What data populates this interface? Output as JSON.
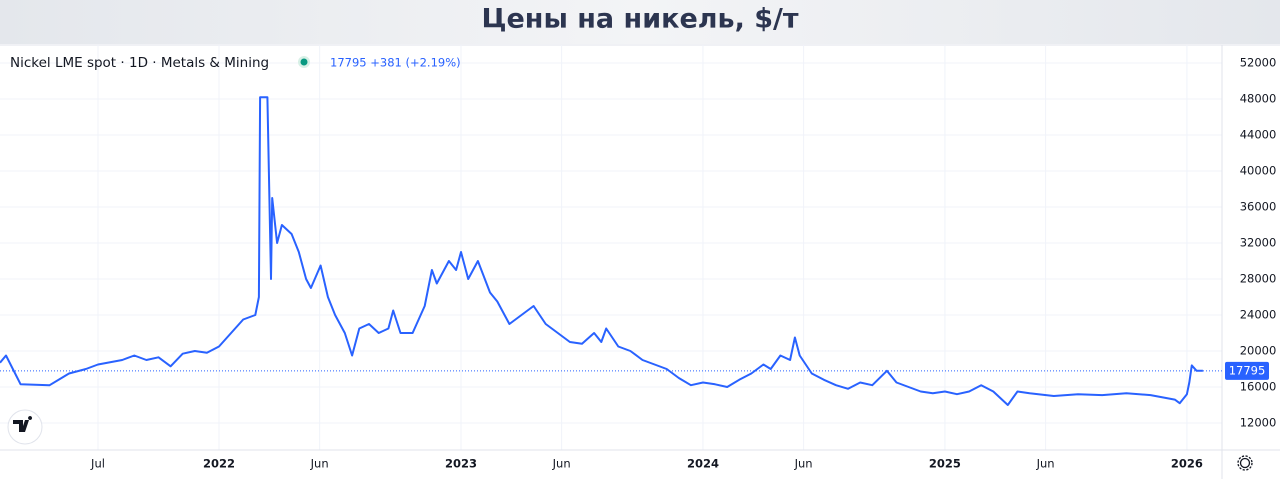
{
  "title": "Цены на никель, $/т",
  "chart_data": {
    "type": "line",
    "symbol": "Nickel LME spot · 1D · Metals & Mining",
    "quote": "17795 +381 (+2.19%)",
    "last_price": 17795,
    "ylim": [
      9000,
      54000
    ],
    "yticks": [
      12000,
      16000,
      20000,
      24000,
      28000,
      32000,
      36000,
      40000,
      44000,
      48000,
      52000
    ],
    "xlim": [
      2021.095,
      2026.145
    ],
    "xticks": [
      {
        "value": 2021.5,
        "label": "Jul"
      },
      {
        "value": 2022,
        "label": "2022"
      },
      {
        "value": 2022.416,
        "label": "Jun"
      },
      {
        "value": 2023,
        "label": "2023"
      },
      {
        "value": 2023.416,
        "label": "Jun"
      },
      {
        "value": 2024,
        "label": "2024"
      },
      {
        "value": 2024.416,
        "label": "Jun"
      },
      {
        "value": 2025,
        "label": "2025"
      },
      {
        "value": 2025.416,
        "label": "Jun"
      },
      {
        "value": 2026,
        "label": "2026"
      }
    ],
    "grid": true,
    "series": [
      {
        "color": "#2962ff",
        "x": [
          2021.095,
          2021.12,
          2021.18,
          2021.3,
          2021.38,
          2021.45,
          2021.5,
          2021.6,
          2021.65,
          2021.7,
          2021.75,
          2021.8,
          2021.85,
          2021.9,
          2021.95,
          2022.0,
          2022.05,
          2022.1,
          2022.15,
          2022.165,
          2022.17,
          2022.2,
          2022.215,
          2022.22,
          2022.24,
          2022.26,
          2022.3,
          2022.33,
          2022.36,
          2022.38,
          2022.42,
          2022.45,
          2022.48,
          2022.52,
          2022.55,
          2022.58,
          2022.62,
          2022.66,
          2022.7,
          2022.72,
          2022.75,
          2022.8,
          2022.85,
          2022.88,
          2022.9,
          2022.95,
          2022.98,
          2023.0,
          2023.03,
          2023.07,
          2023.12,
          2023.15,
          2023.2,
          2023.25,
          2023.3,
          2023.35,
          2023.4,
          2023.45,
          2023.5,
          2023.55,
          2023.58,
          2023.6,
          2023.65,
          2023.7,
          2023.75,
          2023.8,
          2023.85,
          2023.9,
          2023.95,
          2024.0,
          2024.05,
          2024.1,
          2024.15,
          2024.2,
          2024.25,
          2024.28,
          2024.32,
          2024.36,
          2024.38,
          2024.4,
          2024.45,
          2024.5,
          2024.55,
          2024.6,
          2024.65,
          2024.7,
          2024.76,
          2024.8,
          2024.85,
          2024.9,
          2024.95,
          2025.0,
          2025.05,
          2025.1,
          2025.15,
          2025.2,
          2025.26,
          2025.3,
          2025.35,
          2025.45,
          2025.55,
          2025.65,
          2025.75,
          2025.85,
          2025.95,
          2025.97,
          2026.0,
          2026.01,
          2026.02,
          2026.04,
          2026.066
        ],
        "values": [
          18700,
          19500,
          16300,
          16200,
          17500,
          18000,
          18500,
          19000,
          19500,
          19000,
          19300,
          18300,
          19700,
          20000,
          19800,
          20500,
          22000,
          23500,
          24000,
          26000,
          48200,
          48200,
          28000,
          37000,
          32000,
          34000,
          33000,
          31000,
          28000,
          27000,
          29500,
          26000,
          24000,
          22000,
          19500,
          22500,
          23000,
          22000,
          22500,
          24500,
          22000,
          22000,
          25000,
          29000,
          27500,
          30000,
          29000,
          31000,
          28000,
          30000,
          26500,
          25500,
          23000,
          24000,
          25000,
          23000,
          22000,
          21000,
          20800,
          22000,
          21000,
          22500,
          20500,
          20000,
          19000,
          18500,
          18000,
          17000,
          16200,
          16500,
          16300,
          16000,
          16800,
          17500,
          18500,
          18000,
          19500,
          19000,
          21500,
          19500,
          17500,
          16800,
          16200,
          15800,
          16500,
          16200,
          17800,
          16500,
          16000,
          15500,
          15300,
          15500,
          15200,
          15500,
          16200,
          15500,
          14000,
          15500,
          15300,
          15000,
          15200,
          15100,
          15300,
          15100,
          14600,
          14200,
          15200,
          16500,
          18400,
          17800,
          17795
        ]
      }
    ]
  }
}
